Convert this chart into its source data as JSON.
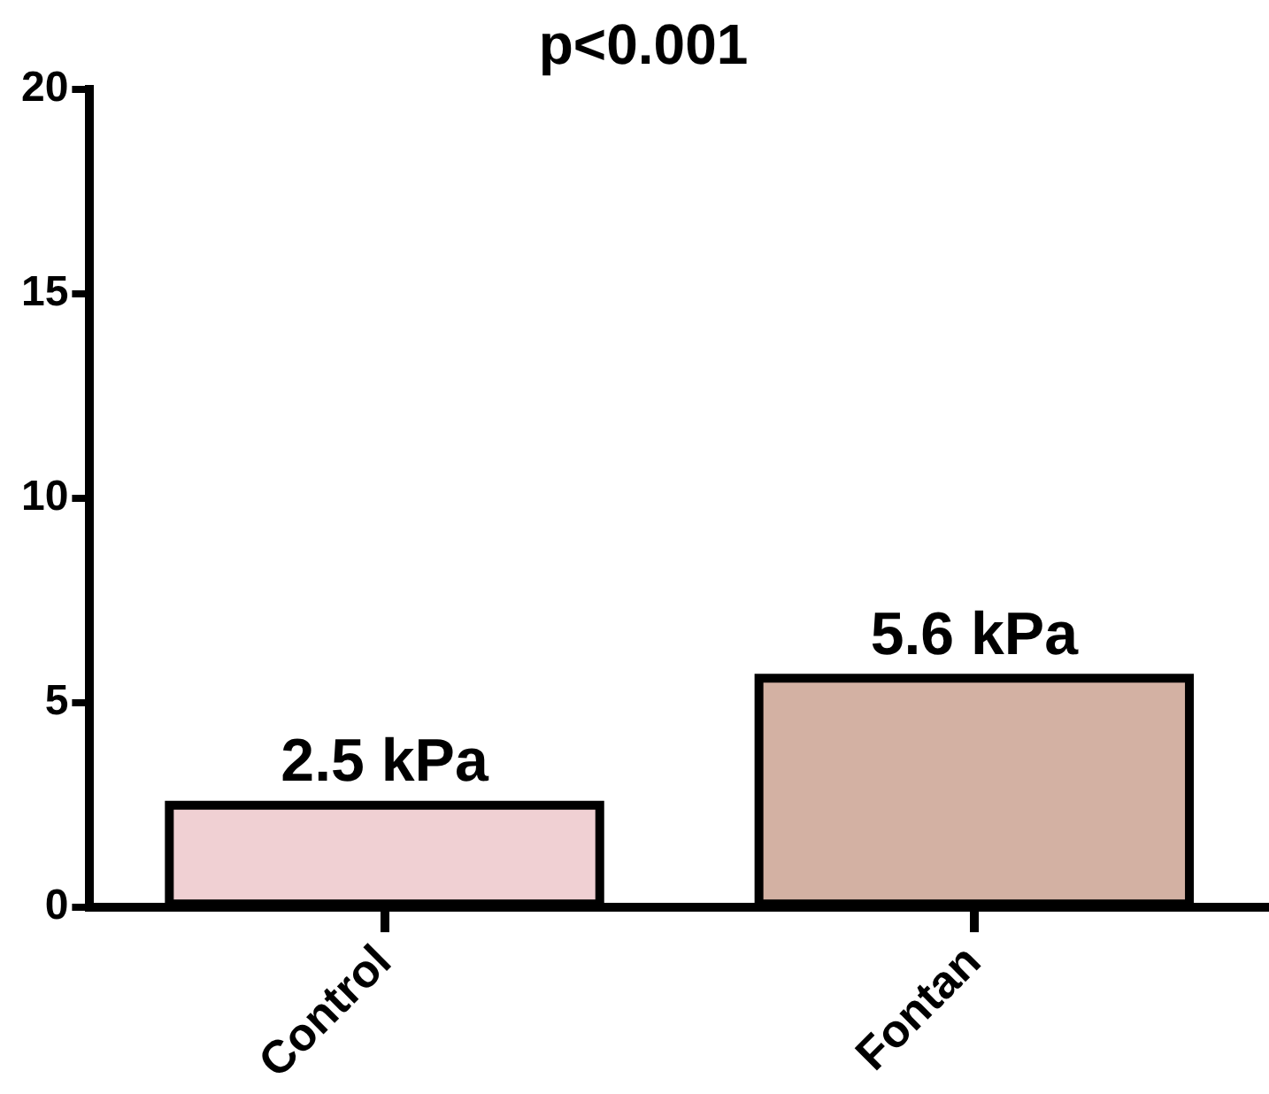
{
  "chart_data": {
    "type": "bar",
    "title": "p<0.001",
    "categories": [
      "Control",
      "Fontan"
    ],
    "values": [
      2.5,
      5.6
    ],
    "colors": [
      "#f0d0d3",
      "#d3b1a3"
    ],
    "value_labels": [
      "2.5 kPa",
      "5.6 kPa"
    ],
    "ylim": [
      0,
      20
    ],
    "yticks": [
      0,
      5,
      10,
      15,
      20
    ],
    "grid": false,
    "legend": false
  }
}
